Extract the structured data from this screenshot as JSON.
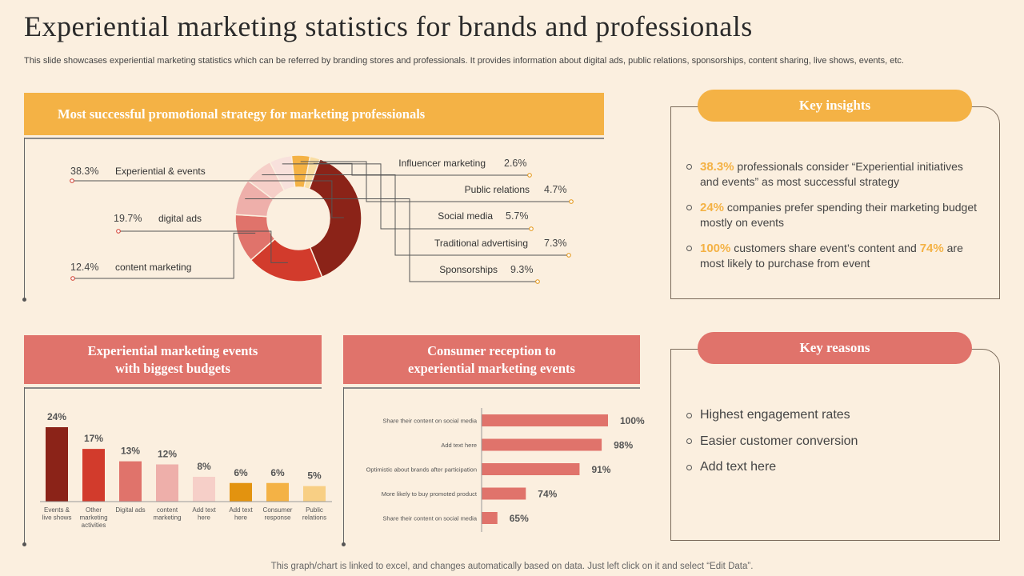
{
  "title": "Experiential marketing statistics for brands and professionals",
  "subtitle": "This slide showcases experiential marketing statistics which can be referred by branding stores and professionals. It provides information about digital ads, public relations, sponsorships, content sharing, live shows, events, etc.",
  "footer": "This graph/chart is linked to excel,  and changes automatically based on data. Just left click on it and select “Edit Data”.",
  "sections": {
    "donut_title": "Most successful promotional strategy for marketing professionals",
    "budget_title_line1": "Experiential marketing events",
    "budget_title_line2": "with biggest budgets",
    "reception_title_line1": "Consumer reception to",
    "reception_title_line2": "experiential marketing events"
  },
  "insights": {
    "heading": "Key insights",
    "items": [
      {
        "hl1": "38.3%",
        "text1": " professionals consider “Experiential initiatives and events” as most successful strategy"
      },
      {
        "hl1": "24%",
        "text1": " companies prefer spending their marketing budget mostly on events"
      },
      {
        "hl1": "100%",
        "text1": " customers share event’s content and ",
        "hl2": "74%",
        "text2": " are most likely to purchase from event"
      }
    ]
  },
  "reasons": {
    "heading": "Key reasons",
    "items": [
      "Highest engagement rates",
      "Easier customer conversion",
      "Add text here"
    ]
  },
  "colors": {
    "maroon": "#8b2318",
    "red": "#d23b2c",
    "coral": "#e0736b",
    "pink": "#eeafaa",
    "pale_pink": "#f6cfc8",
    "amber": "#e3930f",
    "orange": "#f4b245",
    "light_orange": "#f8cf84",
    "cream": "#f9dda2",
    "lightest_pink": "#f8e1dc"
  },
  "chart_data": [
    {
      "type": "pie",
      "title": "Most successful promotional strategy for marketing professionals",
      "categories": [
        "Experiential & events",
        "digital ads",
        "content marketing",
        "Sponsorships",
        "Traditional advertising",
        "Social media",
        "Public relations",
        "Influencer marketing"
      ],
      "values": [
        38.3,
        19.7,
        12.4,
        9.3,
        7.3,
        5.7,
        4.7,
        2.6
      ],
      "labels": [
        "38.3%",
        "19.7%",
        "12.4%",
        "9.3%",
        "7.3%",
        "5.7%",
        "4.7%",
        "2.6%"
      ],
      "colors": [
        "#8b2318",
        "#d23b2c",
        "#e0736b",
        "#eeafaa",
        "#f6cfc8",
        "#f8e1dc",
        "#f4b245",
        "#f9dda2"
      ]
    },
    {
      "type": "bar",
      "title": "Experiential marketing events with biggest budgets",
      "categories": [
        [
          "Events &",
          "live shows"
        ],
        [
          "Other",
          "marketing",
          "activities"
        ],
        [
          "Digital ads"
        ],
        [
          "content",
          "marketing"
        ],
        [
          "Add text",
          "here"
        ],
        [
          "Add text",
          "here"
        ],
        [
          "Consumer",
          "response"
        ],
        [
          "Public",
          "relations"
        ]
      ],
      "values": [
        24,
        17,
        13,
        12,
        8,
        6,
        6,
        5
      ],
      "labels": [
        "24%",
        "17%",
        "13%",
        "12%",
        "8%",
        "6%",
        "6%",
        "5%"
      ],
      "colors": [
        "#8b2318",
        "#d23b2c",
        "#e0736b",
        "#eeafaa",
        "#f6cfc8",
        "#e3930f",
        "#f4b245",
        "#f8cf84"
      ],
      "ylim": [
        0,
        24
      ]
    },
    {
      "type": "bar",
      "orientation": "horizontal",
      "title": "Consumer reception to experiential marketing events",
      "categories": [
        "Share their content on social media",
        "Add text here",
        "Optimistic about brands after participation",
        "More likely to buy promoted product",
        "Share their content on social media"
      ],
      "values": [
        100,
        98,
        91,
        74,
        65
      ],
      "labels": [
        "100%",
        "98%",
        "91%",
        "74%",
        "65%"
      ],
      "xlim": [
        60,
        100
      ]
    }
  ]
}
